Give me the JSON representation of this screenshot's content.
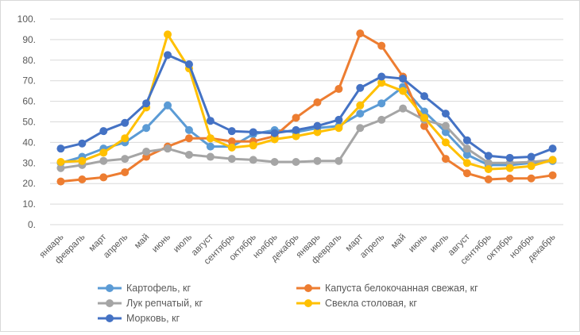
{
  "chart_data": {
    "type": "line",
    "title": "",
    "xlabel": "",
    "ylabel": "",
    "ylim": [
      0,
      100
    ],
    "y_ticks": [
      "0.",
      "10.",
      "20.",
      "30.",
      "40.",
      "50.",
      "60.",
      "70.",
      "80.",
      "90.",
      "100."
    ],
    "categories": [
      "январь",
      "февраль",
      "март",
      "апрель",
      "май",
      "июнь",
      "июль",
      "август",
      "сентябрь",
      "октябрь",
      "ноябрь",
      "декабрь",
      "январь",
      "февраль",
      "март",
      "апрель",
      "май",
      "июнь",
      "июль",
      "август",
      "сентябрь",
      "октябрь",
      "ноябрь",
      "декабрь"
    ],
    "grid": true,
    "legend_position": "bottom",
    "series": [
      {
        "name": "Картофель, кг",
        "color": "#5b9bd5",
        "values": [
          30,
          33,
          37,
          40,
          47,
          58,
          46,
          38,
          38,
          44,
          46,
          45,
          47,
          48,
          54,
          59,
          67,
          55,
          45,
          34,
          29,
          29,
          30,
          31
        ]
      },
      {
        "name": "Капуста белокочанная свежая, кг",
        "color": "#ed7d31",
        "values": [
          21,
          22,
          23,
          25.5,
          33,
          38,
          42,
          42,
          40.5,
          40.5,
          43,
          52,
          59.5,
          66,
          93,
          87,
          72,
          48,
          32,
          25,
          22,
          22.5,
          22.5,
          24
        ]
      },
      {
        "name": "Лук репчатый, кг",
        "color": "#a5a5a5",
        "values": [
          27.5,
          29,
          31,
          32,
          35.5,
          37,
          34,
          33,
          32,
          31.5,
          30.5,
          30.5,
          31,
          31,
          47,
          51,
          56.5,
          51,
          48,
          37,
          30,
          30,
          30.5,
          31.5
        ]
      },
      {
        "name": "Свекла столовая, кг",
        "color": "#ffc000",
        "values": [
          30.5,
          31,
          35,
          42,
          57,
          92.5,
          76,
          42,
          37.5,
          38.5,
          41.5,
          43,
          45,
          47,
          58,
          69,
          65,
          52,
          40,
          30,
          27,
          27.5,
          28.5,
          31.5
        ]
      },
      {
        "name": "Морковь, кг",
        "color": "#4472c4",
        "values": [
          37,
          39.5,
          45.5,
          49.5,
          59,
          82.5,
          78,
          50.5,
          45.5,
          45,
          44.5,
          46,
          48,
          51,
          66.5,
          72,
          71,
          62.5,
          54,
          41,
          33.5,
          32.5,
          33,
          37
        ]
      }
    ]
  }
}
